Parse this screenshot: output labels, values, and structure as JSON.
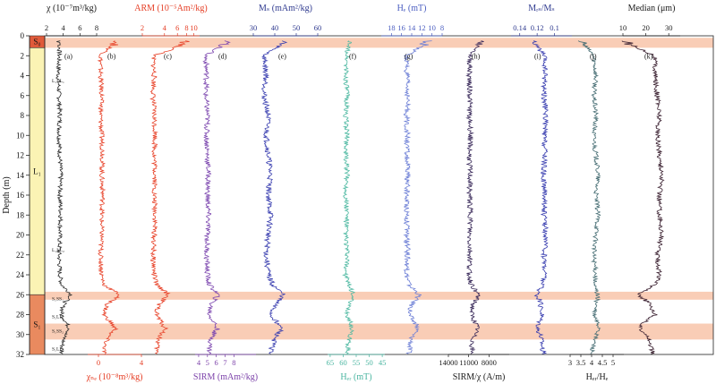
{
  "chart_data": {
    "type": "line",
    "orientation": "vertical-depth-profile",
    "y_axis": {
      "label": "Depth (m)",
      "range": [
        0,
        32
      ],
      "reversed": true,
      "ticks": [
        0,
        2,
        4,
        6,
        8,
        10,
        12,
        14,
        16,
        18,
        20,
        22,
        24,
        26,
        28,
        30,
        32
      ]
    },
    "stratigraphy": {
      "units": [
        {
          "label": "S₀",
          "top": 0,
          "bottom": 1.2,
          "color": "#e05a3a"
        },
        {
          "label": "L₁",
          "top": 1.2,
          "bottom": 26.0,
          "color": "#fbf3b4"
        },
        {
          "label": "S₁",
          "top": 26.0,
          "bottom": 32.0,
          "color": "#e98a5f"
        }
      ],
      "sublabels": [
        {
          "text": "L₁LL₁",
          "depth": 4.5
        },
        {
          "text": "L₁LL₂",
          "depth": 21.5
        },
        {
          "text": "S₁SS₁",
          "depth": 26.4
        },
        {
          "text": "S₁LL₁",
          "depth": 28.2
        },
        {
          "text": "S₁SS₂",
          "depth": 29.6
        },
        {
          "text": "S₁LL₂",
          "depth": 31.4
        }
      ],
      "highlight_bands": [
        {
          "top": 0.2,
          "bottom": 1.2
        },
        {
          "top": 25.7,
          "bottom": 26.5
        },
        {
          "top": 28.9,
          "bottom": 30.5
        }
      ],
      "band_color": "#f9cdb6"
    },
    "depths": [
      0.5,
      2,
      4,
      6,
      8,
      10,
      12,
      14,
      16,
      18,
      20,
      22,
      24,
      25,
      26,
      27,
      28,
      29,
      29.5,
      30,
      31,
      32
    ],
    "panels": [
      {
        "letter": "(a)",
        "axis": "top",
        "label": "χ (10⁻⁷m³/kg)",
        "label_color": "#1a1a1a",
        "color": "#2f2f2f",
        "range": [
          2,
          8
        ],
        "ticks": [
          2,
          4,
          6,
          8
        ],
        "values": [
          3.6,
          3.5,
          3.4,
          3.5,
          3.6,
          3.5,
          3.6,
          3.7,
          3.6,
          3.7,
          3.6,
          3.5,
          3.6,
          3.8,
          5.0,
          4.0,
          3.8,
          4.5,
          4.8,
          4.2,
          3.9,
          3.8
        ]
      },
      {
        "letter": "(b)",
        "axis": "bottom",
        "label": "χₙₑ (10⁻⁸m³/kg)",
        "label_color": "#e53d24",
        "color": "#e8452c",
        "range": [
          -1,
          4
        ],
        "ticks": [
          0,
          4
        ],
        "values": [
          1.8,
          0.2,
          0.2,
          0.3,
          0.2,
          0.3,
          0.4,
          0.3,
          0.4,
          0.3,
          0.3,
          0.2,
          0.3,
          0.5,
          2.0,
          0.8,
          0.5,
          1.3,
          1.6,
          1.0,
          0.6,
          0.5
        ]
      },
      {
        "letter": "(c)",
        "axis": "top",
        "label": "ARM (10⁻⁵Am²/kg)",
        "label_color": "#e53d24",
        "color": "#e8452c",
        "range": [
          2,
          12
        ],
        "ticks": [
          2,
          4,
          6,
          8,
          10
        ],
        "log": true,
        "values": [
          8.0,
          2.8,
          2.9,
          2.8,
          2.9,
          3.0,
          2.9,
          3.0,
          2.9,
          3.0,
          2.9,
          2.8,
          2.9,
          3.1,
          4.5,
          3.3,
          3.1,
          3.8,
          4.2,
          3.5,
          3.2,
          3.1
        ]
      },
      {
        "letter": "(d)",
        "axis": "bottom",
        "label": "SIRM (mAm²/kg)",
        "label_color": "#7a3fa8",
        "color": "#7e49b0",
        "range": [
          3.6,
          10.5
        ],
        "ticks": [
          4,
          5,
          6,
          7,
          8
        ],
        "values": [
          7.5,
          4.8,
          4.9,
          4.8,
          5.0,
          4.9,
          5.0,
          5.1,
          5.0,
          5.1,
          5.0,
          4.9,
          5.0,
          5.2,
          6.2,
          5.4,
          5.2,
          5.9,
          6.1,
          5.6,
          5.3,
          5.2
        ]
      },
      {
        "letter": "(e)",
        "axis": "top",
        "label": "Mₛ (mAm²/kg)",
        "label_color": "#2f3a8f",
        "color": "#3a3fb0",
        "range": [
          30,
          60
        ],
        "ticks": [
          30,
          40,
          50,
          60
        ],
        "values": [
          45,
          35,
          36,
          35,
          37,
          36,
          37,
          38,
          37,
          38,
          37,
          36,
          37,
          39,
          44,
          40,
          38,
          42,
          43,
          41,
          39,
          38
        ]
      },
      {
        "letter": "(f)",
        "axis": "bottom",
        "label": "Hₑᵣ (mT)",
        "label_color": "#49b5a0",
        "color": "#4fb9a2",
        "range": [
          66,
          44
        ],
        "ticks": [
          65,
          60,
          55,
          50,
          45
        ],
        "values": [
          58,
          58.5,
          59,
          58.5,
          59,
          58.5,
          59,
          58.5,
          59,
          58.5,
          59,
          58.5,
          59,
          58,
          56,
          58,
          58.5,
          57,
          56.5,
          57.5,
          58,
          58.5
        ]
      },
      {
        "letter": "(g)",
        "axis": "top",
        "label": "Hₑ (mT)",
        "label_color": "#4a5dc0",
        "color": "#6d7fd6",
        "range": [
          20,
          8
        ],
        "ticks": [
          18,
          16,
          14,
          12,
          10,
          8
        ],
        "values": [
          10.5,
          15.0,
          15.0,
          14.8,
          15.0,
          14.9,
          15.0,
          14.8,
          15.0,
          14.9,
          15.0,
          14.8,
          15.0,
          14.5,
          12.5,
          14.0,
          14.5,
          13.2,
          12.8,
          13.8,
          14.3,
          14.6
        ]
      },
      {
        "letter": "(h)",
        "axis": "bottom",
        "label": "SIRM/χ (A/m)",
        "label_color": "#1a1a1a",
        "color": "#3a2a5a",
        "range": [
          14000,
          5000
        ],
        "ticks": [
          14000,
          11000,
          8000
        ],
        "values": [
          9000,
          10800,
          10900,
          10800,
          10900,
          10700,
          10900,
          10800,
          10900,
          10700,
          10900,
          10800,
          10900,
          10600,
          9500,
          10400,
          10600,
          9900,
          9700,
          10200,
          10500,
          10600
        ]
      },
      {
        "letter": "(i)",
        "axis": "top",
        "label": "Mᵣₛ/Mₛ",
        "label_color": "#2f3a8f",
        "color": "#3a3fb0",
        "range": [
          0.15,
          0.08
        ],
        "ticks": [
          0.14,
          0.12,
          0.1
        ],
        "values": [
          0.125,
          0.112,
          0.111,
          0.112,
          0.11,
          0.112,
          0.111,
          0.113,
          0.111,
          0.112,
          0.11,
          0.112,
          0.111,
          0.114,
          0.12,
          0.116,
          0.114,
          0.118,
          0.119,
          0.116,
          0.114,
          0.113
        ]
      },
      {
        "letter": "(j)",
        "axis": "bottom",
        "label": "Hₑᵣ/Hₑ",
        "label_color": "#1a1a1a",
        "color": "#466d73",
        "range": [
          3,
          5.5
        ],
        "ticks": [
          3,
          3.5,
          4,
          4.5,
          5
        ],
        "values": [
          3.5,
          4.1,
          4.2,
          4.1,
          4.2,
          4.1,
          4.2,
          4.3,
          4.2,
          4.3,
          4.2,
          4.1,
          4.2,
          4.1,
          4.3,
          4.2,
          4.1,
          4.3,
          4.4,
          4.2,
          4.1,
          4.0
        ]
      },
      {
        "letter": "(k)",
        "axis": "top",
        "label": "Median (μm)",
        "label_color": "#1a1a1a",
        "color": "#3a2030",
        "range": [
          10,
          35
        ],
        "ticks": [
          10,
          20,
          30
        ],
        "values": [
          10,
          24,
          24,
          25,
          26,
          25,
          26,
          27,
          26,
          26,
          27,
          25,
          26,
          24,
          17,
          22,
          24,
          18,
          17,
          21,
          22,
          23
        ]
      }
    ]
  }
}
